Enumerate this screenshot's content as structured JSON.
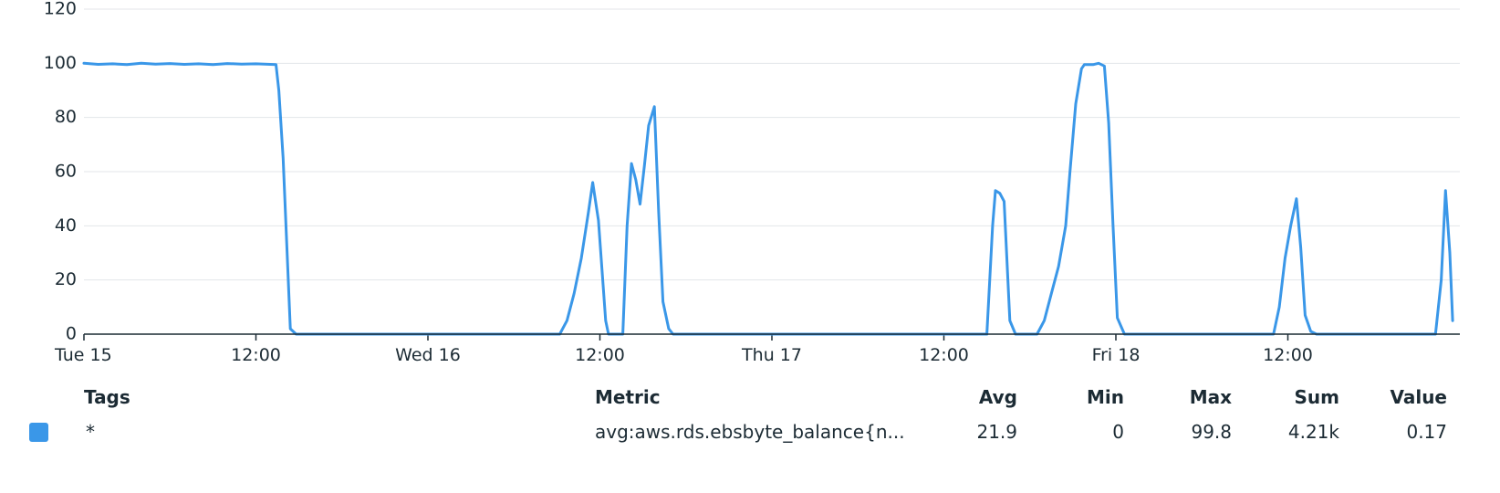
{
  "chart_data": {
    "type": "line",
    "ylim": [
      0,
      120
    ],
    "y_ticks": [
      0,
      20,
      40,
      60,
      80,
      100,
      120
    ],
    "grid": true,
    "x_unit": "hours since Tue 15 00:00",
    "xlim": [
      0,
      96
    ],
    "x_ticks": [
      {
        "x": 0,
        "label": "Tue 15"
      },
      {
        "x": 12,
        "label": "12:00"
      },
      {
        "x": 24,
        "label": "Wed 16"
      },
      {
        "x": 36,
        "label": "12:00"
      },
      {
        "x": 48,
        "label": "Thu 17"
      },
      {
        "x": 60,
        "label": "12:00"
      },
      {
        "x": 72,
        "label": "Fri 18"
      },
      {
        "x": 84,
        "label": "12:00"
      }
    ],
    "series": [
      {
        "color": "#3a97e8",
        "points": [
          [
            0,
            100
          ],
          [
            1,
            99.6
          ],
          [
            2,
            99.8
          ],
          [
            3,
            99.5
          ],
          [
            4,
            100
          ],
          [
            5,
            99.7
          ],
          [
            6,
            99.9
          ],
          [
            7,
            99.6
          ],
          [
            8,
            99.8
          ],
          [
            9,
            99.5
          ],
          [
            10,
            99.9
          ],
          [
            11,
            99.7
          ],
          [
            12,
            99.8
          ],
          [
            13,
            99.6
          ],
          [
            13.4,
            99.5
          ],
          [
            13.6,
            90
          ],
          [
            13.9,
            65
          ],
          [
            14.4,
            2
          ],
          [
            14.8,
            0
          ],
          [
            20,
            0
          ],
          [
            30,
            0
          ],
          [
            33.2,
            0
          ],
          [
            33.7,
            5
          ],
          [
            34.2,
            15
          ],
          [
            34.7,
            28
          ],
          [
            35.2,
            45
          ],
          [
            35.5,
            56
          ],
          [
            35.9,
            42
          ],
          [
            36.4,
            5
          ],
          [
            36.6,
            0
          ],
          [
            37.6,
            0
          ],
          [
            37.9,
            40
          ],
          [
            38.2,
            63
          ],
          [
            38.5,
            57
          ],
          [
            38.8,
            48
          ],
          [
            39.1,
            62
          ],
          [
            39.4,
            77
          ],
          [
            39.8,
            84
          ],
          [
            40.1,
            45
          ],
          [
            40.4,
            12
          ],
          [
            40.8,
            2
          ],
          [
            41.1,
            0
          ],
          [
            50,
            0
          ],
          [
            60,
            0
          ],
          [
            63,
            0
          ],
          [
            63.4,
            40
          ],
          [
            63.6,
            53
          ],
          [
            63.9,
            52
          ],
          [
            64.2,
            49
          ],
          [
            64.6,
            5
          ],
          [
            65,
            0
          ],
          [
            66.5,
            0
          ],
          [
            67,
            5
          ],
          [
            67.5,
            15
          ],
          [
            68,
            25
          ],
          [
            68.5,
            40
          ],
          [
            68.8,
            60
          ],
          [
            69.2,
            85
          ],
          [
            69.6,
            98
          ],
          [
            69.8,
            99.5
          ],
          [
            70.4,
            99.5
          ],
          [
            70.8,
            100
          ],
          [
            71.2,
            99
          ],
          [
            71.5,
            78
          ],
          [
            71.8,
            40
          ],
          [
            72.1,
            6
          ],
          [
            72.6,
            0
          ],
          [
            80,
            0
          ],
          [
            83,
            0
          ],
          [
            83.4,
            10
          ],
          [
            83.8,
            28
          ],
          [
            84.2,
            40
          ],
          [
            84.6,
            50
          ],
          [
            84.9,
            32
          ],
          [
            85.2,
            7
          ],
          [
            85.6,
            1
          ],
          [
            86,
            0
          ],
          [
            92,
            0
          ],
          [
            94.3,
            0
          ],
          [
            94.7,
            20
          ],
          [
            95,
            53
          ],
          [
            95.3,
            30
          ],
          [
            95.5,
            5
          ]
        ]
      }
    ]
  },
  "legend": {
    "headers": {
      "tags": "Tags",
      "metric": "Metric",
      "avg": "Avg",
      "min": "Min",
      "max": "Max",
      "sum": "Sum",
      "value": "Value"
    },
    "rows": [
      {
        "color": "#3a97e8",
        "tags": "*",
        "metric": "avg:aws.rds.ebsbyte_balance{n...",
        "avg": "21.9",
        "min": "0",
        "max": "99.8",
        "sum": "4.21k",
        "value": "0.17"
      }
    ]
  }
}
